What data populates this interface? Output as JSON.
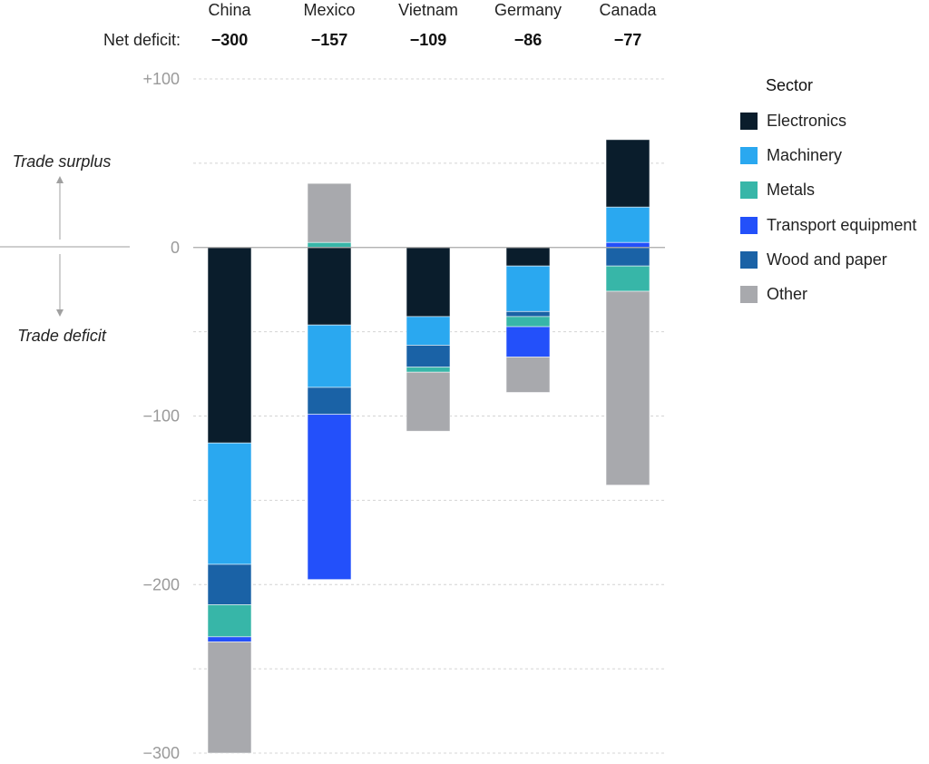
{
  "chart_data": {
    "type": "bar",
    "stacked": true,
    "title": "",
    "xlabel": "",
    "ylabel": "",
    "ylim": [
      -300,
      100
    ],
    "yticks": [
      100,
      0,
      -100,
      -200,
      -300
    ],
    "ytick_labels": [
      "+100",
      "0",
      "−100",
      "−200",
      "−300"
    ],
    "grid": true,
    "net_deficit_label": "Net deficit:",
    "categories": [
      "China",
      "Mexico",
      "Vietnam",
      "Germany",
      "Canada"
    ],
    "net_deficit": [
      "−300",
      "−157",
      "−109",
      "−86",
      "−77"
    ],
    "annotations": {
      "surplus": "Trade surplus",
      "deficit": "Trade deficit"
    },
    "legend": {
      "title": "Sector",
      "placement": "top-right"
    },
    "series": [
      {
        "name": "Electronics",
        "color": "#0a1d2c",
        "values": [
          -116,
          -46,
          -41,
          -11,
          40
        ]
      },
      {
        "name": "Machinery",
        "color": "#2aa8f0",
        "values": [
          -72,
          -37,
          -17,
          -27,
          21
        ]
      },
      {
        "name": "Metals",
        "color": "#37b6a8",
        "values": [
          -19,
          3,
          -3,
          -6,
          -15
        ]
      },
      {
        "name": "Transport equipment",
        "color": "#2350fa",
        "values": [
          -3,
          -98,
          0,
          -18,
          3
        ]
      },
      {
        "name": "Wood and paper",
        "color": "#1a62a6",
        "values": [
          -24,
          -16,
          -13,
          -3,
          -11
        ]
      },
      {
        "name": "Other",
        "color": "#a8a9ad",
        "values": [
          -66,
          35,
          -35,
          -21,
          -115
        ]
      }
    ],
    "stack_order_negative": [
      "Electronics",
      "Machinery",
      "Wood and paper",
      "Metals",
      "Transport equipment",
      "Other"
    ],
    "stack_order_positive": [
      "Transport equipment",
      "Metals",
      "Machinery",
      "Electronics",
      "Other"
    ]
  }
}
